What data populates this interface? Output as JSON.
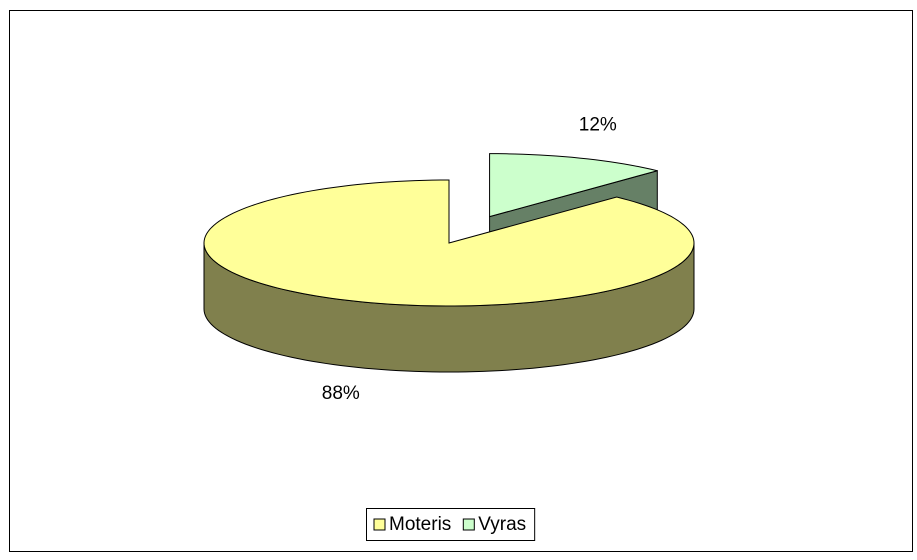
{
  "chart_data": {
    "type": "pie",
    "categories": [
      "Moteris",
      "Vyras"
    ],
    "values": [
      88,
      12
    ],
    "value_labels": [
      "88%",
      "12%"
    ],
    "colors": [
      "#ffff99",
      "#ccffcc"
    ],
    "legend": "bottom"
  }
}
